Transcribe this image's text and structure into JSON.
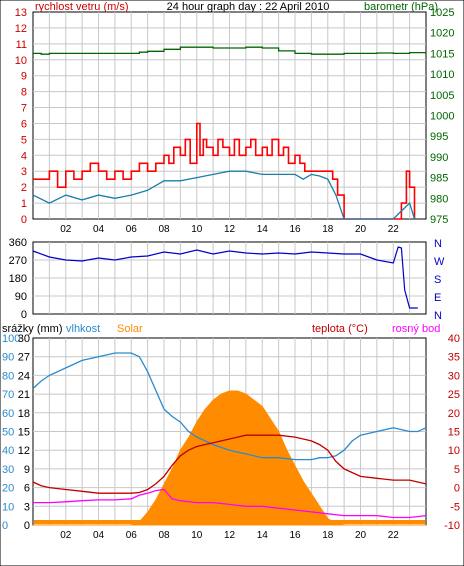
{
  "colors": {
    "wind": "#cc0000",
    "gust": "#ff0000",
    "wind_avg": "#1a7fa8",
    "pressure": "#006600",
    "direction": "#0000cc",
    "humidity": "#2a8ad0",
    "solar": "#ff8c00",
    "temperature": "#c00000",
    "dewpoint": "#ff00ff",
    "rain": "#ff8c00",
    "grid": "#c8c8c8"
  },
  "chart_data": [
    {
      "type": "line",
      "title": "24 hour graph day : 22 April 2010",
      "ylabel_left": "rychlost vetru (m/s)",
      "ylabel_right": "barometr (hPa)",
      "xlim": [
        0,
        24
      ],
      "x_ticks": [
        "02",
        "04",
        "06",
        "08",
        "10",
        "12",
        "14",
        "16",
        "18",
        "20",
        "22"
      ],
      "ylim_left": [
        0,
        13
      ],
      "y_ticks_left": [
        "0",
        "1",
        "2",
        "3",
        "4",
        "5",
        "6",
        "7",
        "8",
        "9",
        "10",
        "11",
        "12",
        "13"
      ],
      "ylim_right": [
        975,
        1025
      ],
      "y_ticks_right": [
        "975",
        "980",
        "985",
        "990",
        "995",
        "1000",
        "1005",
        "1010",
        "1015",
        "1020",
        "1025"
      ],
      "grid": true,
      "series": [
        {
          "key": "gust",
          "x": [
            0,
            1,
            1.5,
            2,
            2.5,
            3,
            3.5,
            4,
            4.5,
            5,
            5.5,
            6,
            6.5,
            7,
            7.5,
            8,
            8.3,
            8.6,
            9,
            9.3,
            9.6,
            10,
            10.2,
            10.4,
            10.6,
            11,
            11.3,
            11.6,
            12,
            12.3,
            12.6,
            13,
            13.3,
            13.6,
            14,
            14.3,
            14.6,
            15,
            15.3,
            15.6,
            16,
            16.3,
            16.6,
            17,
            17.5,
            18,
            18.3,
            18.6,
            19,
            20,
            21,
            22,
            22.5,
            22.8,
            23,
            23.3
          ],
          "y": [
            2.5,
            3,
            2,
            3,
            2.5,
            3,
            3.5,
            3,
            2.5,
            3,
            2.5,
            3,
            3.5,
            3,
            3.5,
            4,
            3.5,
            4.5,
            4,
            5,
            3.5,
            6,
            4,
            5,
            4.5,
            4,
            5,
            4.5,
            4,
            5,
            4,
            4.5,
            5,
            4,
            4.5,
            4,
            5,
            4,
            4.5,
            3.5,
            4,
            3.5,
            3,
            3,
            3,
            3,
            2.5,
            1.5,
            0,
            0,
            0,
            0,
            1,
            3,
            2,
            0
          ]
        },
        {
          "key": "wind_avg",
          "x": [
            0,
            1,
            2,
            3,
            4,
            5,
            6,
            7,
            8,
            9,
            10,
            11,
            12,
            13,
            14,
            15,
            16,
            16.5,
            17,
            17.5,
            18,
            18.5,
            19,
            20,
            21,
            22,
            22.5,
            23,
            23.3
          ],
          "y": [
            1.5,
            1,
            1.5,
            1.2,
            1.5,
            1.3,
            1.5,
            1.8,
            2.4,
            2.4,
            2.6,
            2.8,
            3,
            3,
            2.8,
            2.8,
            2.8,
            2.5,
            2.8,
            2.7,
            2.5,
            1.5,
            0,
            0,
            0,
            0,
            0.5,
            1,
            0
          ]
        },
        {
          "key": "pressure",
          "x": [
            0,
            0.5,
            1,
            6,
            6.5,
            7,
            8,
            9,
            10,
            10.5,
            11,
            13,
            14,
            15,
            16,
            17,
            18,
            19,
            20,
            21,
            22,
            23,
            24
          ],
          "y": [
            1015,
            1014.8,
            1015,
            1015,
            1015.3,
            1015.5,
            1016,
            1016.5,
            1016.5,
            1016.5,
            1016.3,
            1016.5,
            1016.3,
            1015.6,
            1015,
            1014.8,
            1014.8,
            1015,
            1015,
            1015.1,
            1015,
            1015.2,
            1015.2
          ]
        }
      ]
    },
    {
      "type": "scatter",
      "ylabel_left": "",
      "xlim": [
        0,
        24
      ],
      "ylim": [
        0,
        360
      ],
      "y_ticks": [
        "0",
        "90",
        "180",
        "270",
        "360"
      ],
      "y_ticks_right": [
        "N",
        "E",
        "S",
        "W",
        "N"
      ],
      "grid": true,
      "series": [
        {
          "key": "direction",
          "x": [
            0,
            1,
            2,
            3,
            4,
            5,
            6,
            7,
            8,
            9,
            10,
            11,
            12,
            13,
            14,
            15,
            16,
            17,
            18,
            19,
            20,
            21,
            22,
            22.3,
            22.5,
            22.7,
            23,
            23.5
          ],
          "y": [
            315,
            285,
            270,
            265,
            280,
            270,
            285,
            290,
            310,
            300,
            320,
            300,
            315,
            305,
            300,
            305,
            300,
            310,
            305,
            300,
            300,
            270,
            255,
            335,
            330,
            120,
            30,
            30
          ]
        }
      ]
    },
    {
      "type": "area",
      "ylabel_left": "srážky (mm)",
      "ylabel_left2": "vlhkost",
      "ylabel_left3": "Solar",
      "ylabel_right": "teplota (°C)",
      "ylabel_right2": "rosný bod",
      "xlim": [
        0,
        24
      ],
      "ylim_rain": [
        0,
        30
      ],
      "y_ticks_rain": [
        "0",
        "3",
        "6",
        "9",
        "12",
        "15",
        "18",
        "21",
        "24",
        "27",
        "30"
      ],
      "ylim_humidity": [
        0,
        100
      ],
      "y_ticks_humidity": [
        "0",
        "10",
        "20",
        "30",
        "40",
        "50",
        "60",
        "70",
        "80",
        "90",
        "100"
      ],
      "ylim_temp": [
        -10,
        40
      ],
      "y_ticks_temp": [
        "-10",
        "-5",
        "0",
        "5",
        "10",
        "15",
        "20",
        "25",
        "30",
        "35",
        "40"
      ],
      "grid": true,
      "series": [
        {
          "key": "solar",
          "x": [
            0,
            6,
            6.5,
            7,
            7.5,
            8,
            8.5,
            9,
            9.5,
            10,
            10.5,
            11,
            11.5,
            12,
            12.5,
            13,
            13.5,
            14,
            14.5,
            15,
            15.5,
            16,
            16.5,
            17,
            17.5,
            18,
            18.5,
            19,
            24
          ],
          "y": [
            0,
            0,
            0.5,
            2,
            4,
            6.5,
            9,
            12,
            14,
            16.5,
            18.5,
            20,
            21,
            21.5,
            21.5,
            21,
            20,
            19,
            17,
            15,
            12,
            9.5,
            7,
            5,
            3,
            1,
            0.3,
            0,
            0
          ]
        },
        {
          "key": "humidity",
          "x": [
            0,
            0.5,
            1,
            2,
            3,
            4,
            5,
            6,
            6.5,
            7,
            7.5,
            8,
            8.5,
            9,
            9.5,
            10,
            11,
            12,
            13,
            14,
            15,
            16,
            17,
            17.5,
            18,
            18.5,
            19,
            19.5,
            20,
            21,
            22,
            22.5,
            23,
            23.5,
            24
          ],
          "y": [
            73,
            77,
            80,
            84,
            88,
            90,
            92,
            92,
            90,
            82,
            72,
            62,
            58,
            55,
            50,
            47,
            43,
            40,
            38,
            36,
            36,
            35,
            35,
            36,
            36,
            37,
            40,
            45,
            48,
            50,
            52,
            51,
            50,
            50,
            52
          ]
        },
        {
          "key": "temperature",
          "x": [
            0,
            0.5,
            1,
            2,
            3,
            4,
            5,
            6,
            6.5,
            7,
            7.5,
            8,
            8.5,
            9,
            9.5,
            10,
            11,
            12,
            13,
            14,
            15,
            16,
            17,
            17.5,
            18,
            18.5,
            19,
            20,
            21,
            22,
            23,
            24
          ],
          "y": [
            1.5,
            0.5,
            0,
            -0.5,
            -1,
            -1.5,
            -1.5,
            -1.5,
            -1.3,
            -0.5,
            1,
            3,
            6,
            8.5,
            10,
            11,
            12,
            13,
            14,
            14,
            14,
            13.5,
            12.5,
            11.5,
            10,
            7,
            5,
            3,
            2.5,
            2,
            2,
            1
          ]
        },
        {
          "key": "dewpoint",
          "x": [
            0,
            1,
            2,
            3,
            4,
            5,
            6,
            6.5,
            7,
            7.5,
            8,
            8.5,
            9,
            10,
            11,
            12,
            13,
            14,
            15,
            16,
            17,
            18,
            19,
            20,
            21,
            22,
            23,
            24
          ],
          "y": [
            -4,
            -4,
            -3.8,
            -3.5,
            -3.3,
            -3.3,
            -3,
            -2,
            -1.5,
            -0.8,
            -0.5,
            -3,
            -3.5,
            -4,
            -4,
            -4.5,
            -5,
            -5,
            -5.5,
            -6,
            -6.5,
            -7,
            -7.5,
            -7.5,
            -7.5,
            -8,
            -8,
            -7.5
          ]
        },
        {
          "key": "rain",
          "x": [
            0,
            24
          ],
          "y": [
            0,
            0
          ]
        }
      ]
    }
  ]
}
